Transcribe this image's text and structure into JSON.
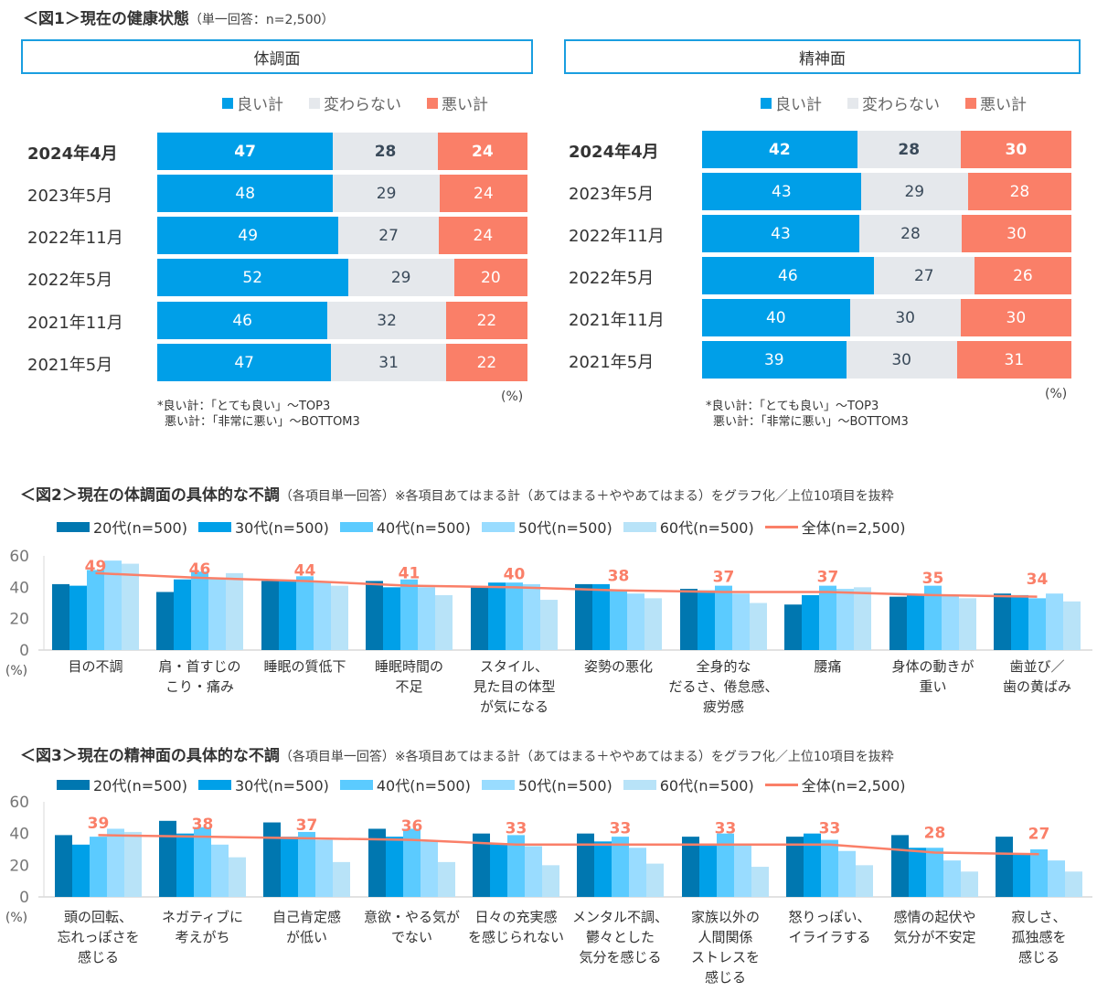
{
  "fig1": {
    "title": "＜図1＞現在の健康状態",
    "subtitle": "（単一回答：n=2,500）",
    "legend": [
      "良い計",
      "変わらない",
      "悪い計"
    ],
    "unit": "(%)",
    "notes": [
      "*良い計：「とても良い」～TOP3",
      "悪い計：「非常に悪い」～BOTTOM3"
    ],
    "colors": {
      "good": "#009fe8",
      "same": "#e5e8ec",
      "bad": "#fa7f68"
    }
  },
  "chart_data": [
    {
      "type": "bar",
      "stacked": true,
      "orientation": "horizontal",
      "title": "体調面",
      "categories": [
        "2024年4月",
        "2023年5月",
        "2022年11月",
        "2022年5月",
        "2021年11月",
        "2021年5月"
      ],
      "series": [
        {
          "name": "良い計",
          "values": [
            47,
            48,
            49,
            52,
            46,
            47
          ]
        },
        {
          "name": "変わらない",
          "values": [
            28,
            29,
            27,
            29,
            32,
            31
          ]
        },
        {
          "name": "悪い計",
          "values": [
            24,
            24,
            24,
            20,
            22,
            22
          ]
        }
      ],
      "unit": "(%)"
    },
    {
      "type": "bar",
      "stacked": true,
      "orientation": "horizontal",
      "title": "精神面",
      "categories": [
        "2024年4月",
        "2023年5月",
        "2022年11月",
        "2022年5月",
        "2021年11月",
        "2021年5月"
      ],
      "series": [
        {
          "name": "良い計",
          "values": [
            42,
            43,
            43,
            46,
            40,
            39
          ]
        },
        {
          "name": "変わらない",
          "values": [
            28,
            29,
            28,
            27,
            30,
            30
          ]
        },
        {
          "name": "悪い計",
          "values": [
            30,
            28,
            30,
            26,
            30,
            31
          ]
        }
      ],
      "unit": "(%)"
    },
    {
      "type": "bar",
      "title": "＜図2＞現在の体調面の具体的な不調",
      "subtitle": "（各項目単一回答）※各項目あてはまる計（あてはまる＋ややあてはまる）をグラフ化／上位10項目を抜粋",
      "categories": [
        "目の不調",
        "肩・首すじの\nこり・痛み",
        "睡眠の質低下",
        "睡眠時間の\n不足",
        "スタイル、\n見た目の体型\nが気になる",
        "姿勢の悪化",
        "全身的な\nだるさ、倦怠感、\n疲労感",
        "腰痛",
        "身体の動きが\n重い",
        "歯並び／\n歯の黄ばみ"
      ],
      "series": [
        {
          "name": "20代(n=500)",
          "color": "#0077b0",
          "values": [
            42,
            37,
            44,
            44,
            40,
            42,
            39,
            29,
            34,
            36
          ]
        },
        {
          "name": "30代(n=500)",
          "color": "#00a0e8",
          "values": [
            41,
            45,
            44,
            40,
            43,
            42,
            38,
            35,
            35,
            35
          ]
        },
        {
          "name": "40代(n=500)",
          "color": "#5bcbff",
          "values": [
            51,
            50,
            47,
            45,
            43,
            38,
            41,
            41,
            41,
            33
          ]
        },
        {
          "name": "50代(n=500)",
          "color": "#99dcff",
          "values": [
            57,
            46,
            44,
            40,
            42,
            36,
            36,
            39,
            35,
            36
          ]
        },
        {
          "name": "60代(n=500)",
          "color": "#b8e3f8",
          "values": [
            55,
            49,
            41,
            35,
            32,
            33,
            30,
            40,
            33,
            31
          ]
        },
        {
          "name": "全体(n=2,500)",
          "type": "line",
          "color": "#fa7f68",
          "values": [
            49,
            46,
            44,
            41,
            40,
            38,
            37,
            37,
            35,
            34
          ]
        }
      ],
      "ylim": [
        0,
        60
      ],
      "yticks": [
        "0",
        "20",
        "40",
        "60"
      ],
      "ylabel": "(%)"
    },
    {
      "type": "bar",
      "title": "＜図3＞現在の精神面の具体的な不調",
      "subtitle": "（各項目単一回答）※各項目あてはまる計（あてはまる＋ややあてはまる）をグラフ化／上位10項目を抜粋",
      "categories": [
        "頭の回転、\n忘れっぽさを\n感じる",
        "ネガティブに\n考えがち",
        "自己肯定感\nが低い",
        "意欲・やる気が\nでない",
        "日々の充実感\nを感じられない",
        "メンタル不調、\n鬱々とした\n気分を感じる",
        "家族以外の\n人間関係\nストレスを\n感じる",
        "怒りっぽい、\nイライラする",
        "感情の起伏や\n気分が不安定",
        "寂しさ、\n孤独感を\n感じる"
      ],
      "series": [
        {
          "name": "20代(n=500)",
          "color": "#0077b0",
          "values": [
            39,
            48,
            47,
            43,
            40,
            40,
            38,
            38,
            39,
            38
          ]
        },
        {
          "name": "30代(n=500)",
          "color": "#00a0e8",
          "values": [
            33,
            40,
            38,
            38,
            34,
            35,
            33,
            40,
            31,
            27
          ]
        },
        {
          "name": "40代(n=500)",
          "color": "#5bcbff",
          "values": [
            38,
            44,
            41,
            43,
            39,
            38,
            40,
            36,
            31,
            30
          ]
        },
        {
          "name": "50代(n=500)",
          "color": "#99dcff",
          "values": [
            43,
            33,
            36,
            35,
            32,
            31,
            33,
            29,
            23,
            23
          ]
        },
        {
          "name": "60代(n=500)",
          "color": "#b8e3f8",
          "values": [
            41,
            25,
            22,
            22,
            20,
            21,
            19,
            20,
            16,
            16
          ]
        },
        {
          "name": "全体(n=2,500)",
          "type": "line",
          "color": "#fa7f68",
          "values": [
            39,
            38,
            37,
            36,
            33,
            33,
            33,
            33,
            28,
            27
          ]
        }
      ],
      "ylim": [
        0,
        60
      ],
      "yticks": [
        "0",
        "20",
        "40",
        "60"
      ],
      "ylabel": "(%)"
    }
  ]
}
